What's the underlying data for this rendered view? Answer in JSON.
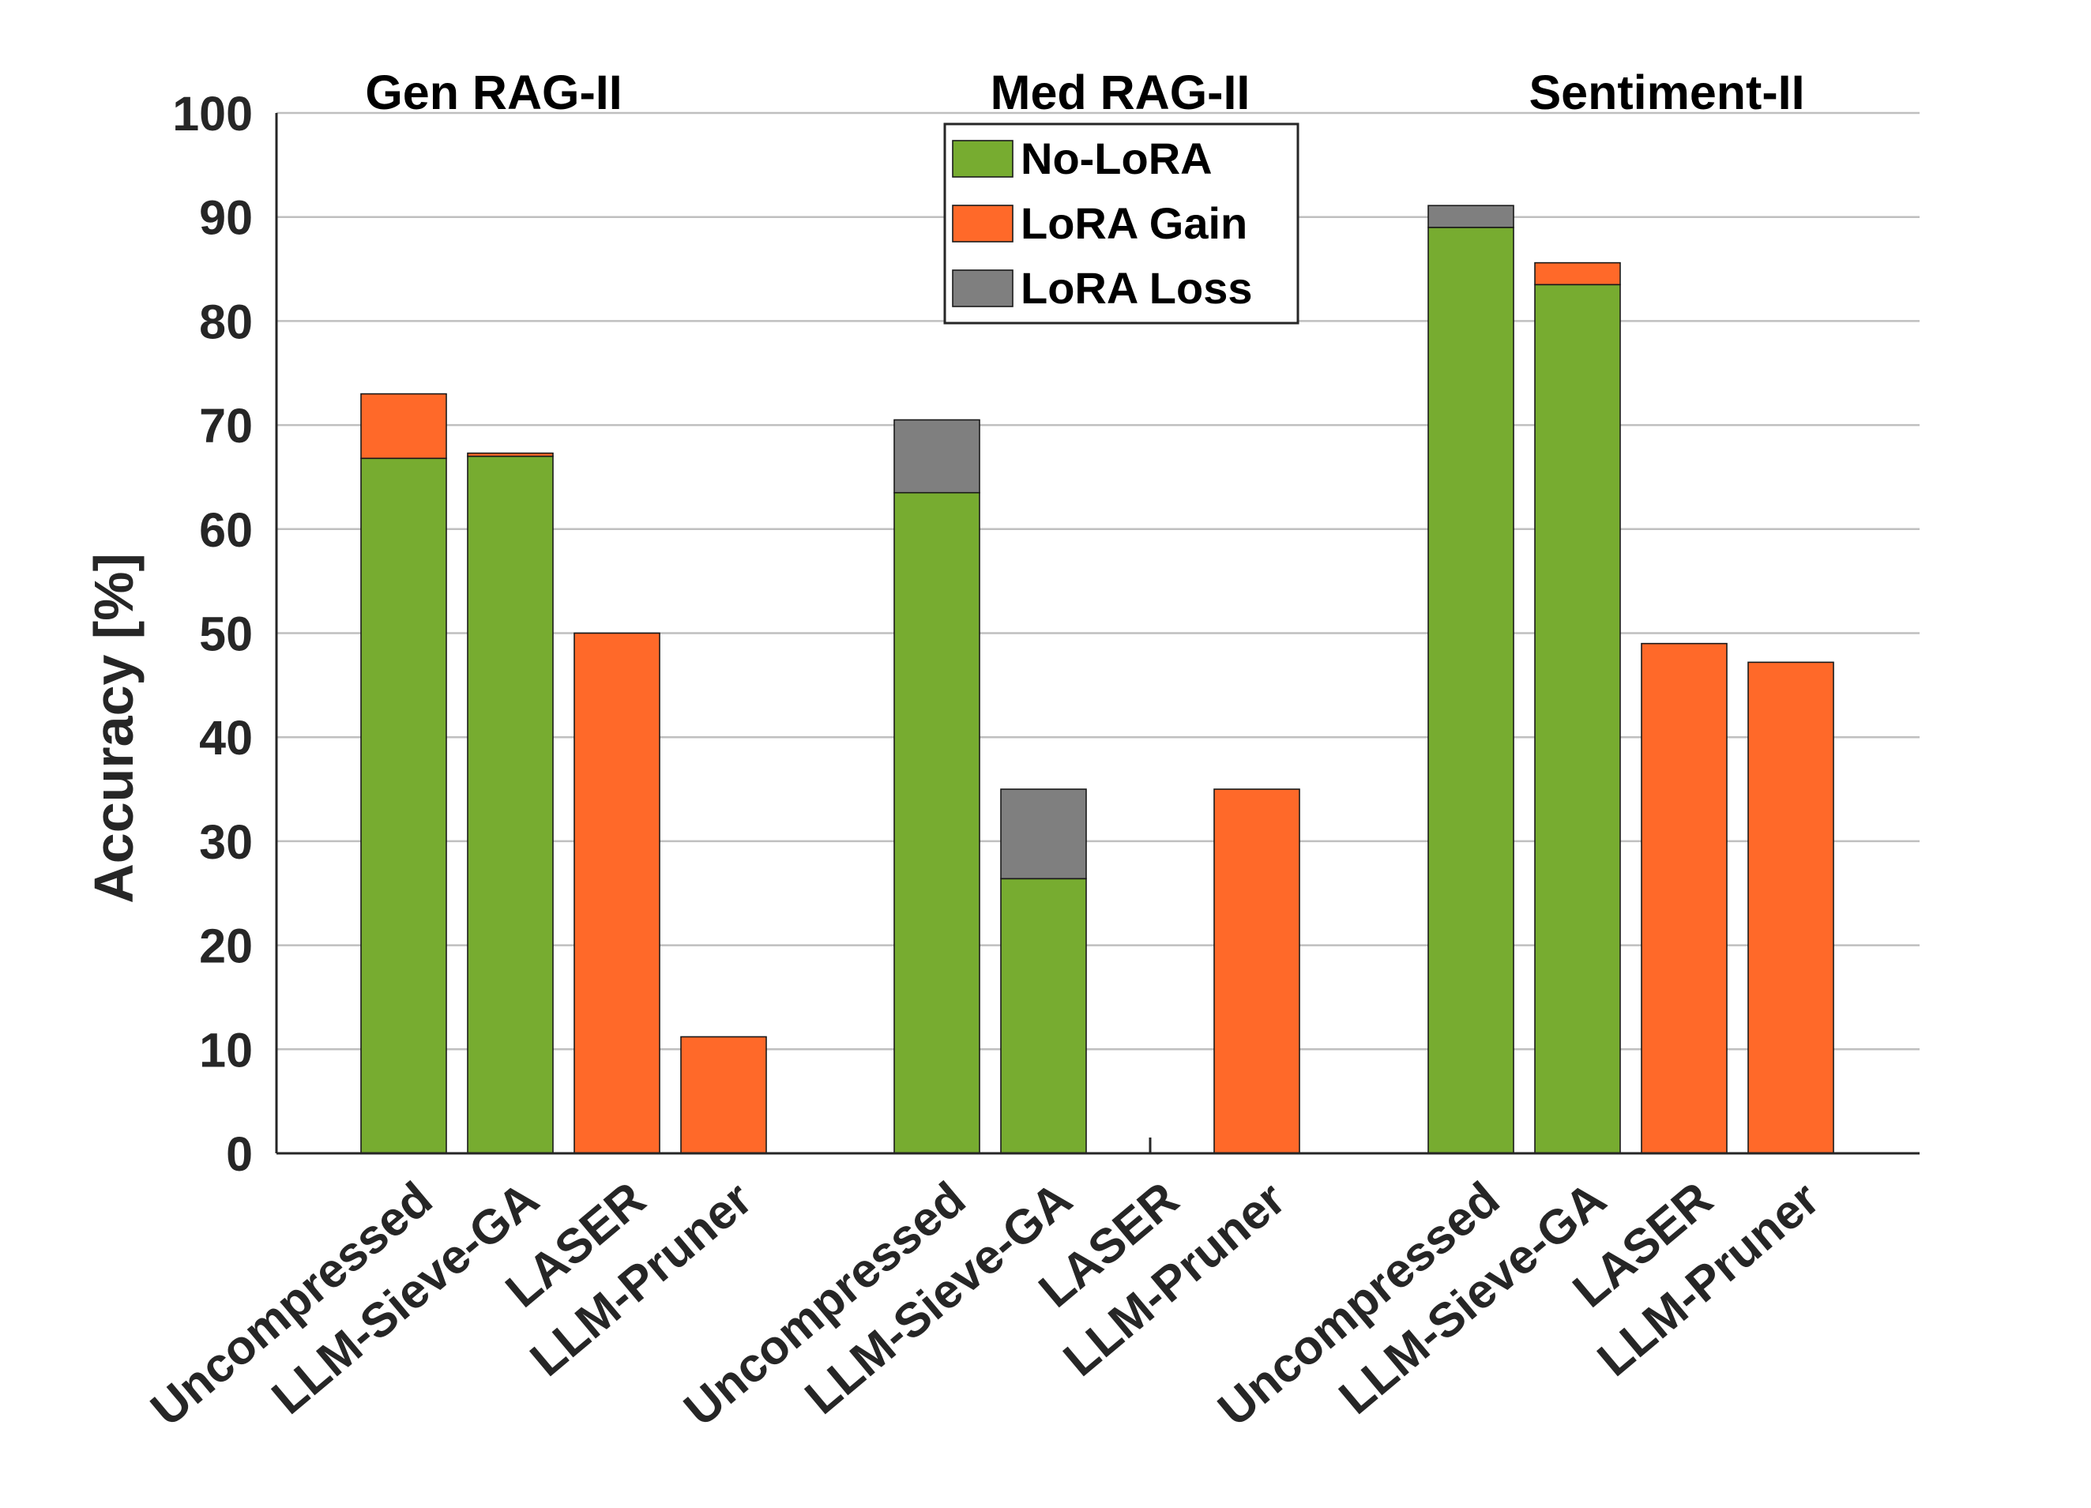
{
  "chart_data": {
    "type": "bar",
    "subtype": "stacked-grouped",
    "ylabel": "Accuracy [%]",
    "ylim": [
      0,
      100
    ],
    "yticks": [
      0,
      10,
      20,
      30,
      40,
      50,
      60,
      70,
      80,
      90,
      100
    ],
    "grid": true,
    "legend_position": "top-center",
    "colors": {
      "No-LoRA": "#77ac30",
      "LoRA Gain": "#ff6929",
      "LoRA Loss": "#7f7f7f"
    },
    "legend": [
      "No-LoRA",
      "LoRA Gain",
      "LoRA Loss"
    ],
    "groups": [
      {
        "title": "Gen RAG-II",
        "categories": [
          "Uncompressed",
          "LLM-Sieve-GA",
          "LASER",
          "LLM-Pruner"
        ],
        "series": [
          {
            "name": "No-LoRA",
            "values": [
              66.8,
              67.0,
              0,
              0
            ]
          },
          {
            "name": "LoRA Gain",
            "values": [
              6.2,
              0.3,
              50.0,
              11.2
            ]
          },
          {
            "name": "LoRA Loss",
            "values": [
              0,
              0,
              0,
              0
            ]
          }
        ]
      },
      {
        "title": "Med RAG-II",
        "categories": [
          "Uncompressed",
          "LLM-Sieve-GA",
          "LASER",
          "LLM-Pruner"
        ],
        "series": [
          {
            "name": "No-LoRA",
            "values": [
              63.5,
              26.4,
              0,
              0
            ]
          },
          {
            "name": "LoRA Gain",
            "values": [
              0,
              0,
              0,
              35.0
            ]
          },
          {
            "name": "LoRA Loss",
            "values": [
              7.0,
              8.6,
              0,
              0
            ]
          }
        ]
      },
      {
        "title": "Sentiment-II",
        "categories": [
          "Uncompressed",
          "LLM-Sieve-GA",
          "LASER",
          "LLM-Pruner"
        ],
        "series": [
          {
            "name": "No-LoRA",
            "values": [
              89.0,
              83.5,
              0,
              0
            ]
          },
          {
            "name": "LoRA Gain",
            "values": [
              0,
              2.1,
              49.0,
              47.2
            ]
          },
          {
            "name": "LoRA Loss",
            "values": [
              2.1,
              0,
              0,
              0
            ]
          }
        ]
      }
    ]
  }
}
